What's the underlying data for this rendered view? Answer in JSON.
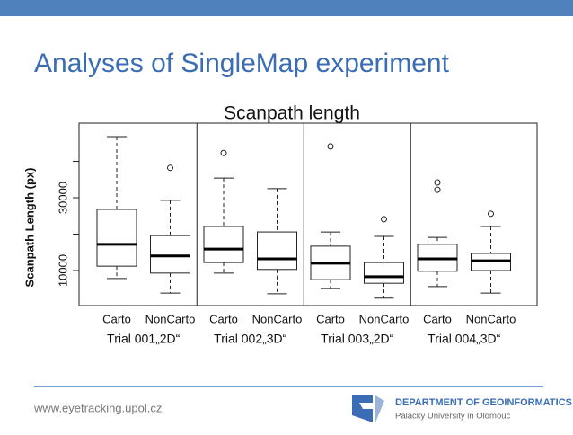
{
  "slide": {
    "title": "Analyses of SingleMap experiment",
    "footer": "www.eyetracking.upol.cz",
    "logo_title": "DEPARTMENT OF GEOINFORMATICS",
    "logo_subtitle": "Palacký University in Olomouc"
  },
  "chart_data": {
    "type": "box",
    "title": "Scanpath length",
    "y_label": "Scanpath Length (px)",
    "categories": [
      "Carto",
      "NonCarto",
      "Carto",
      "NonCarto",
      "Carto",
      "NonCarto",
      "Carto",
      "NonCarto"
    ],
    "groups": [
      "Trial 001„2D“",
      "Trial 002„3D“",
      "Trial 003„2D“",
      "Trial 004„3D“"
    ],
    "boxes": [
      {
        "min": 7800,
        "q1": 11200,
        "median": 17200,
        "q3": 26800,
        "max": 46800,
        "outliers": []
      },
      {
        "min": 3800,
        "q1": 9300,
        "median": 14000,
        "q3": 19600,
        "max": 29300,
        "outliers": [
          38200
        ]
      },
      {
        "min": 9300,
        "q1": 12200,
        "median": 15900,
        "q3": 22100,
        "max": 35400,
        "outliers": [
          42300
        ]
      },
      {
        "min": 3600,
        "q1": 10300,
        "median": 13200,
        "q3": 20600,
        "max": 32500,
        "outliers": []
      },
      {
        "min": 5100,
        "q1": 7500,
        "median": 12000,
        "q3": 16700,
        "max": 20600,
        "outliers": [
          44100
        ]
      },
      {
        "min": 2400,
        "q1": 6500,
        "median": 8300,
        "q3": 12200,
        "max": 19400,
        "outliers": [
          24100
        ]
      },
      {
        "min": 5600,
        "q1": 9800,
        "median": 13200,
        "q3": 17200,
        "max": 19100,
        "outliers": [
          34200,
          32200
        ]
      },
      {
        "min": 3800,
        "q1": 10000,
        "median": 12700,
        "q3": 14700,
        "max": 22100,
        "outliers": [
          25600
        ]
      }
    ],
    "ylim": [
      370,
      50500
    ],
    "yticks": [
      10000,
      30000
    ],
    "minor_yticks": [
      20000,
      40000
    ]
  }
}
